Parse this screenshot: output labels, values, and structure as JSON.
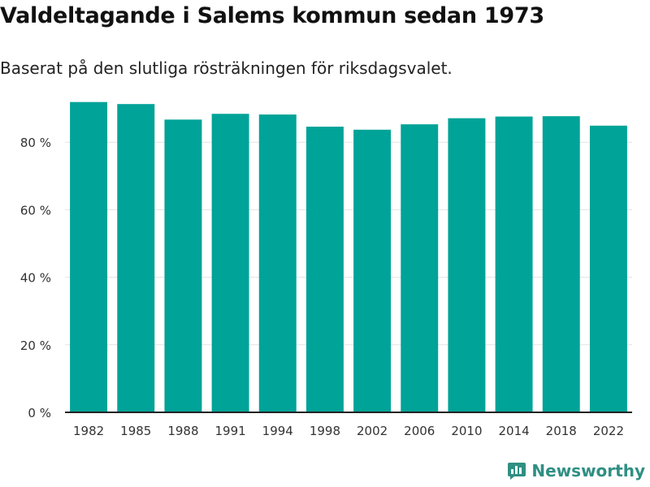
{
  "title": "Valdeltagande i Salems kommun sedan 1973",
  "subtitle": "Baserat på den slutliga rösträkningen för riksdagsvalet.",
  "brand": "Newsworthy",
  "colors": {
    "bar": "#00a398",
    "grid": "#e3e3e3",
    "axis": "#222222",
    "brand": "#2f8f83"
  },
  "chart_data": {
    "type": "bar",
    "categories": [
      "1982",
      "1985",
      "1988",
      "1991",
      "1994",
      "1998",
      "2002",
      "2006",
      "2010",
      "2014",
      "2018",
      "2022"
    ],
    "values": [
      91.9,
      91.3,
      86.7,
      88.4,
      88.2,
      84.6,
      83.7,
      85.3,
      87.1,
      87.6,
      87.7,
      84.9
    ],
    "ylim": [
      0,
      100
    ],
    "yticks": [
      0,
      20,
      40,
      60,
      80
    ],
    "ytick_labels": [
      "0 %",
      "20 %",
      "40 %",
      "60 %",
      "80 %"
    ],
    "grid": true
  }
}
